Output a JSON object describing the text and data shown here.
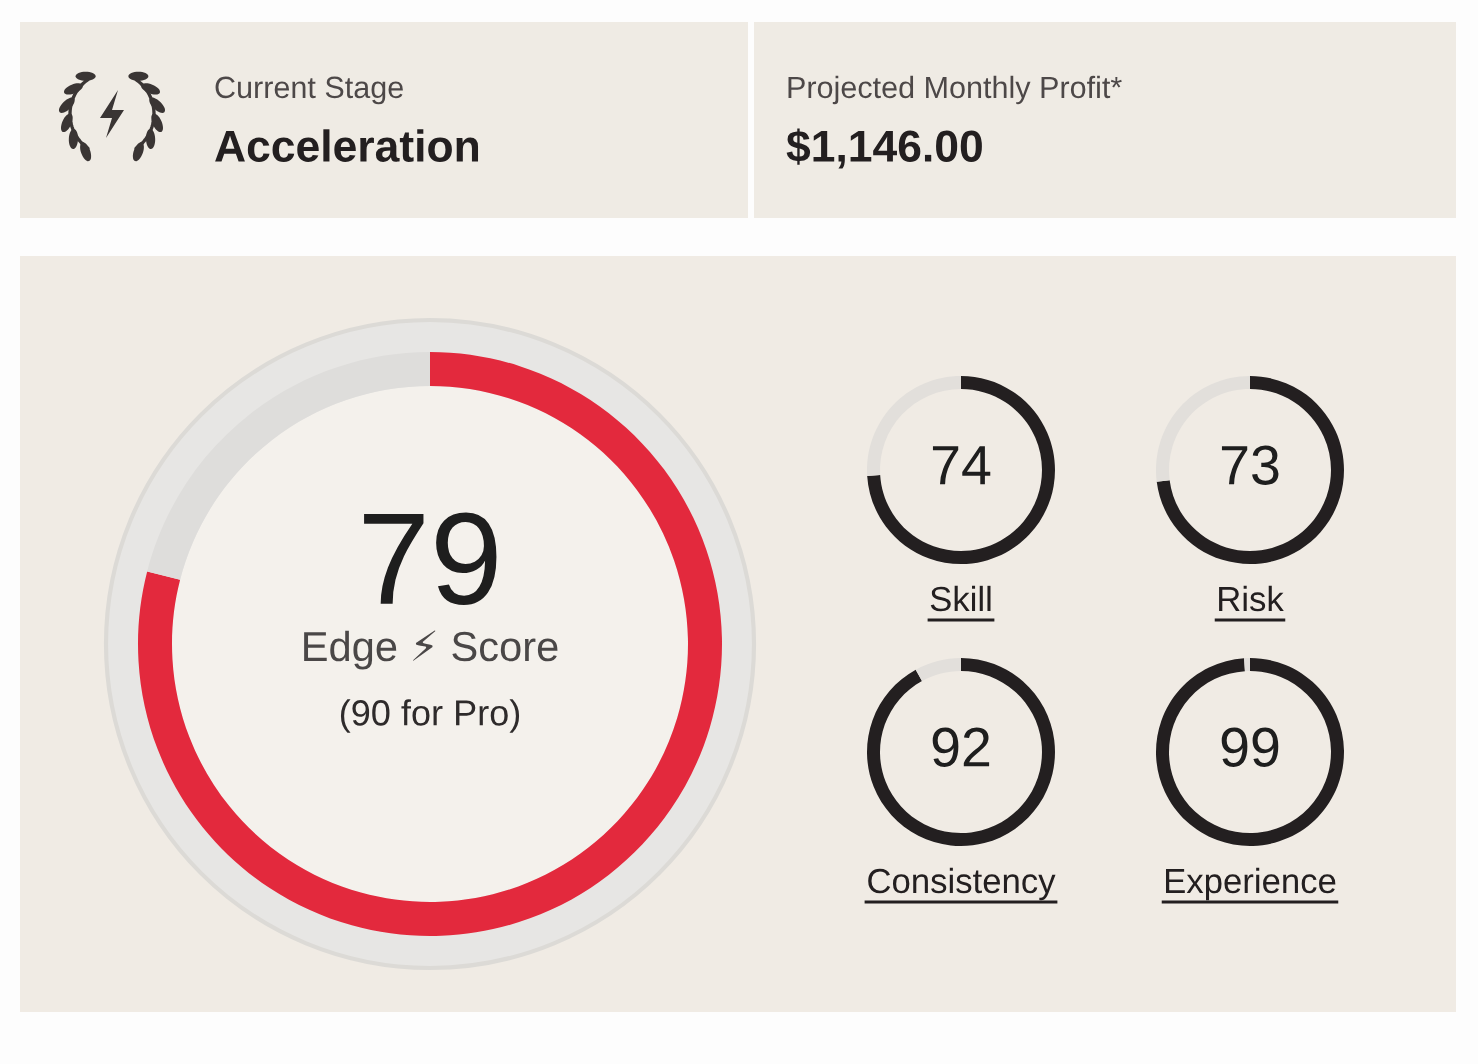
{
  "chart_data": [
    {
      "type": "other",
      "title": "Current Stage",
      "subtitle": "Acceleration"
    },
    {
      "type": "other",
      "title": "Projected Monthly Profit*",
      "subtitle": "$1,146.00"
    },
    {
      "type": "donut",
      "title": "Edge ⚡ Score",
      "subtitle": "(90 for Pro)",
      "categories": [
        null,
        null
      ],
      "values": [
        79,
        21
      ],
      "colors": [
        "#e3293d",
        "#dedddb"
      ],
      "value_labels": [
        "79",
        null
      ]
    },
    {
      "type": "donut",
      "title": "Skill",
      "categories": [
        null,
        null
      ],
      "values": [
        74,
        26
      ],
      "colors": [
        "#231f20",
        "#e2dfdb"
      ],
      "value_labels": [
        "74",
        null
      ]
    },
    {
      "type": "donut",
      "title": "Risk",
      "categories": [
        null,
        null
      ],
      "values": [
        73,
        27
      ],
      "colors": [
        "#231f20",
        "#e2dfdb"
      ],
      "value_labels": [
        "73",
        null
      ]
    },
    {
      "type": "donut",
      "title": "Consistency",
      "categories": [
        null,
        null
      ],
      "values": [
        92,
        8
      ],
      "colors": [
        "#231f20",
        "#e2dfdb"
      ],
      "value_labels": [
        "92",
        null
      ]
    },
    {
      "type": "donut",
      "title": "Experience",
      "categories": [
        null,
        null
      ],
      "values": [
        99,
        1
      ],
      "colors": [
        "#231f20",
        "#e2dfdb"
      ],
      "value_labels": [
        "99",
        null
      ]
    }
  ]
}
